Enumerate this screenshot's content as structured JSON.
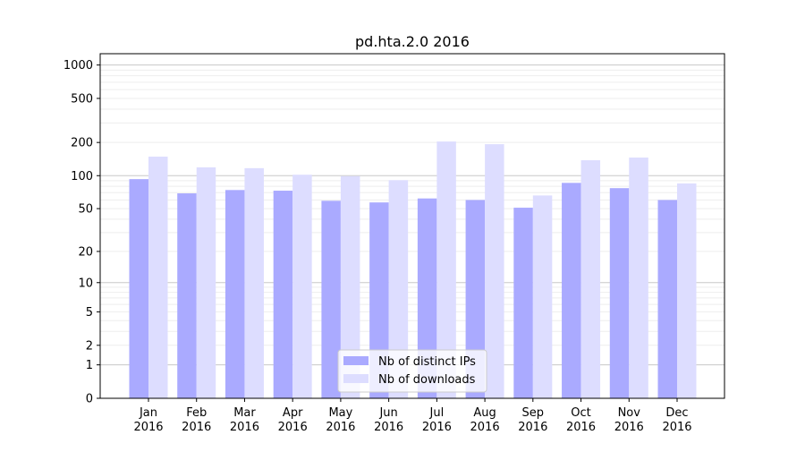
{
  "chart_data": {
    "type": "bar",
    "title": "pd.hta.2.0 2016",
    "xlabel": "",
    "ylabel": "",
    "yscale": "symlog (log10(1+y))",
    "ylim": [
      0,
      1300
    ],
    "grid": true,
    "legend_position": "lower-center",
    "categories": [
      "Jan\n2016",
      "Feb\n2016",
      "Mar\n2016",
      "Apr\n2016",
      "May\n2016",
      "Jun\n2016",
      "Jul\n2016",
      "Aug\n2016",
      "Sep\n2016",
      "Oct\n2016",
      "Nov\n2016",
      "Dec\n2016"
    ],
    "yticks": [
      0,
      1,
      2,
      5,
      10,
      20,
      50,
      100,
      200,
      500,
      1000
    ],
    "series": [
      {
        "name": "Nb of distinct IPs",
        "color": "#aaaaff",
        "values": [
          93,
          69,
          74,
          73,
          59,
          57,
          62,
          60,
          51,
          86,
          77,
          60
        ]
      },
      {
        "name": "Nb of downloads",
        "color": "#ddddff",
        "values": [
          149,
          119,
          117,
          102,
          99,
          91,
          204,
          193,
          66,
          138,
          146,
          85
        ]
      }
    ]
  }
}
